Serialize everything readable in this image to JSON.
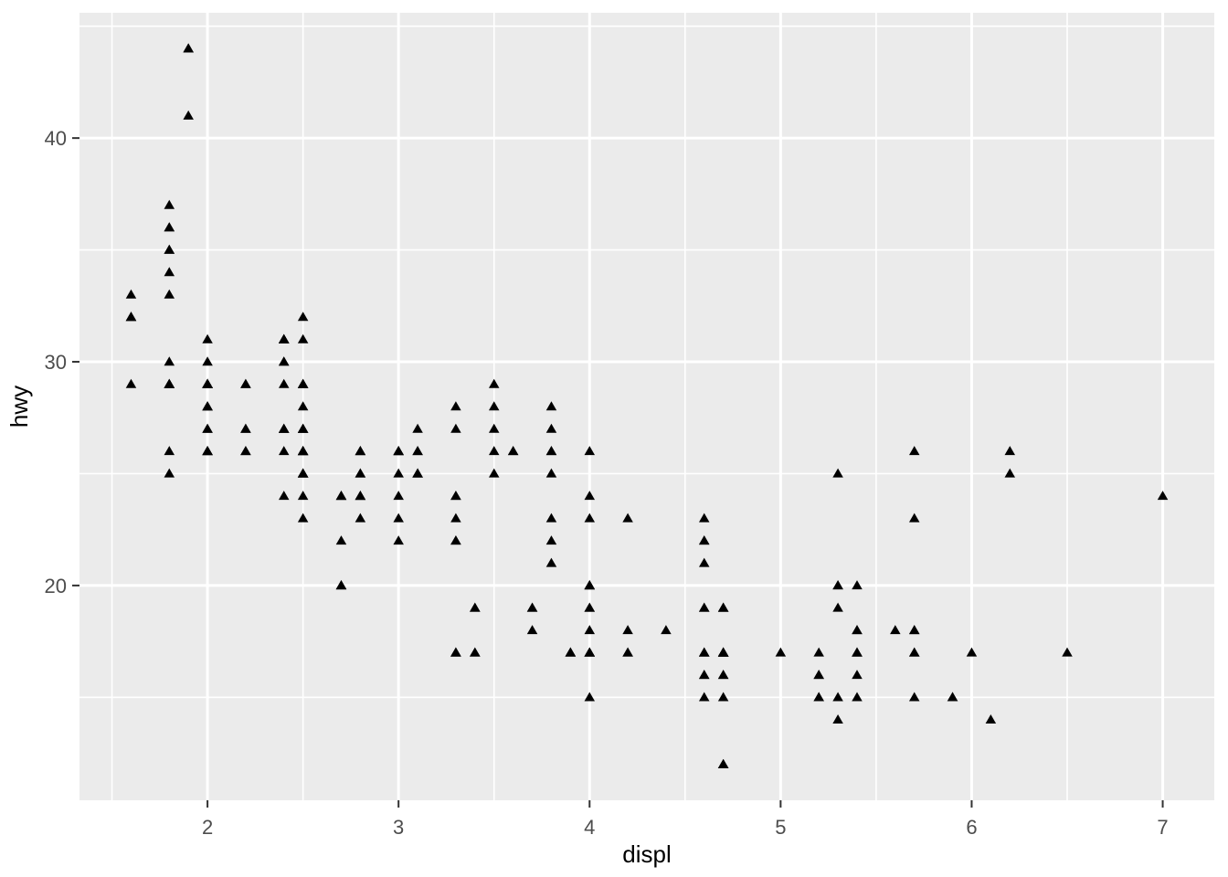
{
  "figure": {
    "background": "#FFFFFF"
  },
  "chart_data": {
    "type": "scatter",
    "title": "",
    "xlabel": "displ",
    "ylabel": "hwy",
    "legend": "none",
    "grid": "on",
    "marker": {
      "shape": "filled-triangle",
      "color": "#000000",
      "width": 11.5,
      "height": 10
    },
    "panel": {
      "background": "#EBEBEB",
      "grid_major_color": "#FFFFFF",
      "grid_minor_color": "#FFFFFF"
    },
    "axes": {
      "x": {
        "label": "displ",
        "range": [
          1.33,
          7.27
        ],
        "ticks": [
          2,
          3,
          4,
          5,
          6,
          7
        ],
        "minor_ticks": [
          1.5,
          2.5,
          3.5,
          4.5,
          5.5,
          6.5
        ],
        "tick_color": "#333333",
        "text_color": "#4D4D4D"
      },
      "y": {
        "label": "hwy",
        "range": [
          10.4,
          45.6
        ],
        "ticks": [
          20,
          30,
          40
        ],
        "minor_ticks": [
          15,
          25,
          35,
          45
        ],
        "tick_color": "#333333",
        "text_color": "#4D4D4D"
      }
    },
    "points": [
      [
        1.8,
        29
      ],
      [
        1.8,
        29
      ],
      [
        2.0,
        31
      ],
      [
        2.0,
        30
      ],
      [
        2.8,
        26
      ],
      [
        2.8,
        26
      ],
      [
        3.1,
        27
      ],
      [
        1.8,
        26
      ],
      [
        1.8,
        25
      ],
      [
        2.0,
        28
      ],
      [
        2.0,
        27
      ],
      [
        2.8,
        25
      ],
      [
        2.8,
        25
      ],
      [
        3.1,
        25
      ],
      [
        3.1,
        25
      ],
      [
        2.8,
        24
      ],
      [
        3.1,
        25
      ],
      [
        4.2,
        23
      ],
      [
        5.3,
        20
      ],
      [
        5.3,
        15
      ],
      [
        5.3,
        20
      ],
      [
        5.7,
        17
      ],
      [
        6.0,
        17
      ],
      [
        5.7,
        26
      ],
      [
        5.7,
        23
      ],
      [
        6.2,
        26
      ],
      [
        6.2,
        25
      ],
      [
        7.0,
        24
      ],
      [
        5.3,
        19
      ],
      [
        5.3,
        14
      ],
      [
        5.7,
        15
      ],
      [
        6.5,
        17
      ],
      [
        2.4,
        27
      ],
      [
        2.4,
        30
      ],
      [
        3.1,
        26
      ],
      [
        3.5,
        29
      ],
      [
        3.6,
        26
      ],
      [
        2.4,
        24
      ],
      [
        3.0,
        24
      ],
      [
        3.3,
        22
      ],
      [
        3.3,
        22
      ],
      [
        3.3,
        24
      ],
      [
        3.3,
        24
      ],
      [
        3.3,
        17
      ],
      [
        3.8,
        22
      ],
      [
        3.8,
        21
      ],
      [
        3.8,
        23
      ],
      [
        4.0,
        23
      ],
      [
        3.7,
        19
      ],
      [
        3.7,
        18
      ],
      [
        3.9,
        17
      ],
      [
        3.9,
        17
      ],
      [
        4.7,
        19
      ],
      [
        4.7,
        19
      ],
      [
        4.7,
        12
      ],
      [
        5.2,
        17
      ],
      [
        5.2,
        15
      ],
      [
        3.9,
        17
      ],
      [
        4.7,
        17
      ],
      [
        4.7,
        12
      ],
      [
        4.7,
        17
      ],
      [
        4.7,
        16
      ],
      [
        5.2,
        16
      ],
      [
        5.9,
        15
      ],
      [
        4.7,
        17
      ],
      [
        4.7,
        17
      ],
      [
        4.7,
        12
      ],
      [
        4.7,
        16
      ],
      [
        4.7,
        12
      ],
      [
        5.2,
        15
      ],
      [
        5.2,
        16
      ],
      [
        5.7,
        17
      ],
      [
        5.9,
        15
      ],
      [
        4.7,
        17
      ],
      [
        4.6,
        17
      ],
      [
        5.4,
        17
      ],
      [
        5.4,
        18
      ],
      [
        4.0,
        17
      ],
      [
        4.0,
        17
      ],
      [
        4.0,
        17
      ],
      [
        4.0,
        19
      ],
      [
        4.6,
        19
      ],
      [
        4.2,
        17
      ],
      [
        4.2,
        17
      ],
      [
        4.6,
        16
      ],
      [
        4.6,
        16
      ],
      [
        4.6,
        17
      ],
      [
        5.4,
        15
      ],
      [
        5.4,
        17
      ],
      [
        4.6,
        17
      ],
      [
        3.8,
        26
      ],
      [
        3.8,
        25
      ],
      [
        4.0,
        26
      ],
      [
        4.0,
        24
      ],
      [
        4.6,
        21
      ],
      [
        4.6,
        22
      ],
      [
        4.6,
        23
      ],
      [
        4.6,
        22
      ],
      [
        5.4,
        20
      ],
      [
        1.6,
        33
      ],
      [
        1.6,
        32
      ],
      [
        1.6,
        32
      ],
      [
        1.6,
        29
      ],
      [
        1.6,
        32
      ],
      [
        1.8,
        34
      ],
      [
        1.8,
        36
      ],
      [
        1.8,
        36
      ],
      [
        2.0,
        29
      ],
      [
        2.4,
        26
      ],
      [
        2.4,
        27
      ],
      [
        2.4,
        30
      ],
      [
        2.4,
        31
      ],
      [
        2.5,
        26
      ],
      [
        2.5,
        26
      ],
      [
        3.3,
        28
      ],
      [
        2.0,
        26
      ],
      [
        2.0,
        29
      ],
      [
        2.0,
        28
      ],
      [
        2.0,
        27
      ],
      [
        2.7,
        24
      ],
      [
        2.7,
        24
      ],
      [
        2.7,
        24
      ],
      [
        3.0,
        22
      ],
      [
        3.7,
        19
      ],
      [
        4.0,
        20
      ],
      [
        4.7,
        17
      ],
      [
        4.7,
        12
      ],
      [
        4.7,
        19
      ],
      [
        5.7,
        18
      ],
      [
        6.1,
        14
      ],
      [
        4.0,
        15
      ],
      [
        4.2,
        18
      ],
      [
        4.4,
        18
      ],
      [
        4.6,
        15
      ],
      [
        5.4,
        17
      ],
      [
        5.4,
        16
      ],
      [
        5.4,
        18
      ],
      [
        4.0,
        17
      ],
      [
        4.0,
        19
      ],
      [
        4.6,
        19
      ],
      [
        5.0,
        17
      ],
      [
        2.4,
        29
      ],
      [
        2.4,
        27
      ],
      [
        2.5,
        31
      ],
      [
        2.5,
        32
      ],
      [
        3.5,
        27
      ],
      [
        3.5,
        26
      ],
      [
        3.0,
        26
      ],
      [
        3.0,
        25
      ],
      [
        3.5,
        25
      ],
      [
        3.3,
        17
      ],
      [
        3.3,
        17
      ],
      [
        4.0,
        20
      ],
      [
        5.6,
        18
      ],
      [
        3.1,
        26
      ],
      [
        3.8,
        26
      ],
      [
        3.8,
        27
      ],
      [
        3.8,
        28
      ],
      [
        5.3,
        25
      ],
      [
        2.5,
        25
      ],
      [
        2.5,
        24
      ],
      [
        2.5,
        27
      ],
      [
        2.5,
        25
      ],
      [
        2.5,
        26
      ],
      [
        2.5,
        23
      ],
      [
        2.2,
        26
      ],
      [
        2.2,
        26
      ],
      [
        2.5,
        26
      ],
      [
        2.5,
        26
      ],
      [
        2.5,
        25
      ],
      [
        2.5,
        27
      ],
      [
        2.5,
        25
      ],
      [
        2.5,
        27
      ],
      [
        2.7,
        20
      ],
      [
        2.7,
        20
      ],
      [
        3.4,
        19
      ],
      [
        3.4,
        17
      ],
      [
        4.0,
        20
      ],
      [
        4.7,
        17
      ],
      [
        2.2,
        29
      ],
      [
        2.2,
        27
      ],
      [
        2.4,
        31
      ],
      [
        2.4,
        31
      ],
      [
        3.0,
        26
      ],
      [
        3.0,
        26
      ],
      [
        3.5,
        28
      ],
      [
        2.2,
        27
      ],
      [
        2.2,
        29
      ],
      [
        2.4,
        31
      ],
      [
        2.4,
        31
      ],
      [
        3.0,
        26
      ],
      [
        3.3,
        27
      ],
      [
        1.8,
        30
      ],
      [
        1.8,
        33
      ],
      [
        1.8,
        35
      ],
      [
        1.8,
        37
      ],
      [
        1.8,
        35
      ],
      [
        4.7,
        15
      ],
      [
        5.7,
        18
      ],
      [
        3.0,
        23
      ],
      [
        3.3,
        23
      ],
      [
        2.7,
        20
      ],
      [
        2.7,
        22
      ],
      [
        3.4,
        17
      ],
      [
        3.4,
        19
      ],
      [
        4.0,
        18
      ],
      [
        4.0,
        20
      ],
      [
        2.0,
        29
      ],
      [
        2.0,
        26
      ],
      [
        2.0,
        29
      ],
      [
        2.0,
        29
      ],
      [
        2.8,
        24
      ],
      [
        1.9,
        44
      ],
      [
        2.0,
        29
      ],
      [
        2.0,
        26
      ],
      [
        2.0,
        29
      ],
      [
        2.0,
        29
      ],
      [
        2.5,
        29
      ],
      [
        2.5,
        29
      ],
      [
        2.8,
        23
      ],
      [
        2.8,
        24
      ],
      [
        1.9,
        44
      ],
      [
        1.9,
        41
      ],
      [
        2.0,
        29
      ],
      [
        2.0,
        26
      ],
      [
        2.5,
        28
      ],
      [
        2.5,
        29
      ],
      [
        1.8,
        29
      ],
      [
        1.8,
        29
      ],
      [
        2.0,
        28
      ],
      [
        2.0,
        29
      ],
      [
        2.8,
        26
      ],
      [
        3.6,
        26
      ],
      [
        2.0,
        29
      ]
    ]
  }
}
